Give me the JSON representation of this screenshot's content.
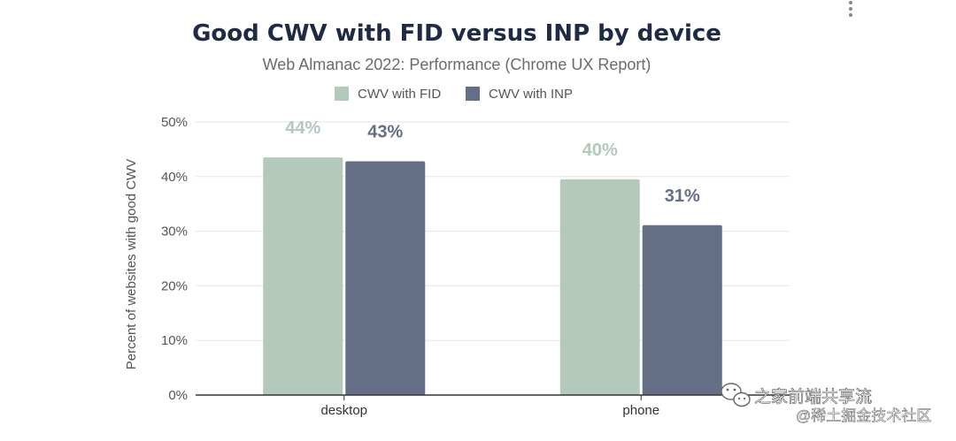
{
  "menu": {
    "icon": "more-vertical-icon"
  },
  "chart_data": {
    "type": "bar",
    "title": "Good CWV with FID versus INP by device",
    "subtitle": "Web Almanac 2022: Performance (Chrome UX Report)",
    "categories": [
      "desktop",
      "phone"
    ],
    "series": [
      {
        "name": "CWV with FID",
        "values": [
          43.5,
          39.5
        ],
        "labels": [
          "44%",
          "40%"
        ],
        "color": "#b2c9bc"
      },
      {
        "name": "CWV with INP",
        "values": [
          42.8,
          31.1
        ],
        "labels": [
          "43%",
          "31%"
        ],
        "color": "#646e86"
      }
    ],
    "ylabel": "Percent of websites with good CWV",
    "ylim": [
      0,
      50
    ],
    "yticks": [
      "0%",
      "10%",
      "20%",
      "30%",
      "40%",
      "50%"
    ],
    "grid": true,
    "legend_position": "top-center"
  },
  "watermark": {
    "line1": "之家前端共享流",
    "line2": "@稀土掘金技术社区",
    "icon": "wechat-icon"
  }
}
